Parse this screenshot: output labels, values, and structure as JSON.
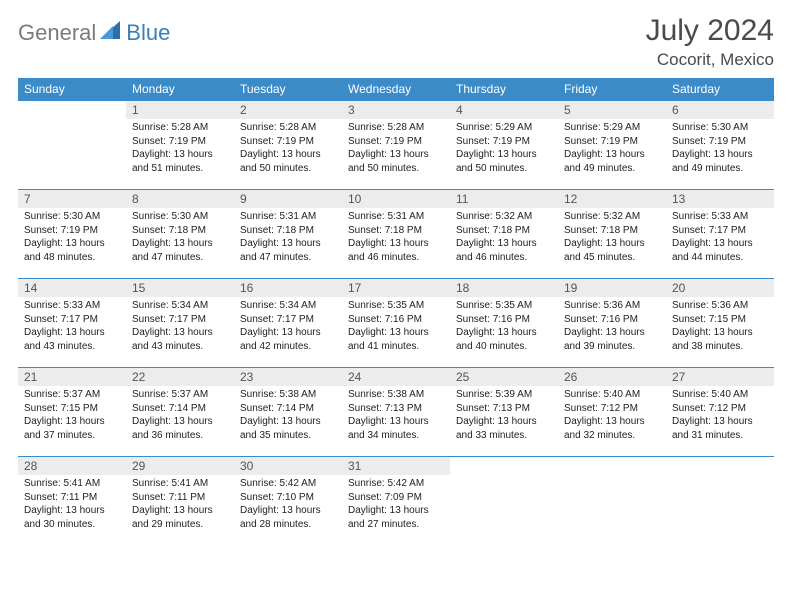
{
  "logo": {
    "general": "General",
    "blue": "Blue"
  },
  "title": "July 2024",
  "location": "Cocorit, Mexico",
  "header_color": "#3b8bc8",
  "daynum_bg": "#ececec",
  "weekdays": [
    "Sunday",
    "Monday",
    "Tuesday",
    "Wednesday",
    "Thursday",
    "Friday",
    "Saturday"
  ],
  "weeks": [
    [
      {
        "n": "",
        "lines": []
      },
      {
        "n": "1",
        "lines": [
          "Sunrise: 5:28 AM",
          "Sunset: 7:19 PM",
          "Daylight: 13 hours",
          "and 51 minutes."
        ]
      },
      {
        "n": "2",
        "lines": [
          "Sunrise: 5:28 AM",
          "Sunset: 7:19 PM",
          "Daylight: 13 hours",
          "and 50 minutes."
        ]
      },
      {
        "n": "3",
        "lines": [
          "Sunrise: 5:28 AM",
          "Sunset: 7:19 PM",
          "Daylight: 13 hours",
          "and 50 minutes."
        ]
      },
      {
        "n": "4",
        "lines": [
          "Sunrise: 5:29 AM",
          "Sunset: 7:19 PM",
          "Daylight: 13 hours",
          "and 50 minutes."
        ]
      },
      {
        "n": "5",
        "lines": [
          "Sunrise: 5:29 AM",
          "Sunset: 7:19 PM",
          "Daylight: 13 hours",
          "and 49 minutes."
        ]
      },
      {
        "n": "6",
        "lines": [
          "Sunrise: 5:30 AM",
          "Sunset: 7:19 PM",
          "Daylight: 13 hours",
          "and 49 minutes."
        ]
      }
    ],
    [
      {
        "n": "7",
        "lines": [
          "Sunrise: 5:30 AM",
          "Sunset: 7:19 PM",
          "Daylight: 13 hours",
          "and 48 minutes."
        ]
      },
      {
        "n": "8",
        "lines": [
          "Sunrise: 5:30 AM",
          "Sunset: 7:18 PM",
          "Daylight: 13 hours",
          "and 47 minutes."
        ]
      },
      {
        "n": "9",
        "lines": [
          "Sunrise: 5:31 AM",
          "Sunset: 7:18 PM",
          "Daylight: 13 hours",
          "and 47 minutes."
        ]
      },
      {
        "n": "10",
        "lines": [
          "Sunrise: 5:31 AM",
          "Sunset: 7:18 PM",
          "Daylight: 13 hours",
          "and 46 minutes."
        ]
      },
      {
        "n": "11",
        "lines": [
          "Sunrise: 5:32 AM",
          "Sunset: 7:18 PM",
          "Daylight: 13 hours",
          "and 46 minutes."
        ]
      },
      {
        "n": "12",
        "lines": [
          "Sunrise: 5:32 AM",
          "Sunset: 7:18 PM",
          "Daylight: 13 hours",
          "and 45 minutes."
        ]
      },
      {
        "n": "13",
        "lines": [
          "Sunrise: 5:33 AM",
          "Sunset: 7:17 PM",
          "Daylight: 13 hours",
          "and 44 minutes."
        ]
      }
    ],
    [
      {
        "n": "14",
        "lines": [
          "Sunrise: 5:33 AM",
          "Sunset: 7:17 PM",
          "Daylight: 13 hours",
          "and 43 minutes."
        ]
      },
      {
        "n": "15",
        "lines": [
          "Sunrise: 5:34 AM",
          "Sunset: 7:17 PM",
          "Daylight: 13 hours",
          "and 43 minutes."
        ]
      },
      {
        "n": "16",
        "lines": [
          "Sunrise: 5:34 AM",
          "Sunset: 7:17 PM",
          "Daylight: 13 hours",
          "and 42 minutes."
        ]
      },
      {
        "n": "17",
        "lines": [
          "Sunrise: 5:35 AM",
          "Sunset: 7:16 PM",
          "Daylight: 13 hours",
          "and 41 minutes."
        ]
      },
      {
        "n": "18",
        "lines": [
          "Sunrise: 5:35 AM",
          "Sunset: 7:16 PM",
          "Daylight: 13 hours",
          "and 40 minutes."
        ]
      },
      {
        "n": "19",
        "lines": [
          "Sunrise: 5:36 AM",
          "Sunset: 7:16 PM",
          "Daylight: 13 hours",
          "and 39 minutes."
        ]
      },
      {
        "n": "20",
        "lines": [
          "Sunrise: 5:36 AM",
          "Sunset: 7:15 PM",
          "Daylight: 13 hours",
          "and 38 minutes."
        ]
      }
    ],
    [
      {
        "n": "21",
        "lines": [
          "Sunrise: 5:37 AM",
          "Sunset: 7:15 PM",
          "Daylight: 13 hours",
          "and 37 minutes."
        ]
      },
      {
        "n": "22",
        "lines": [
          "Sunrise: 5:37 AM",
          "Sunset: 7:14 PM",
          "Daylight: 13 hours",
          "and 36 minutes."
        ]
      },
      {
        "n": "23",
        "lines": [
          "Sunrise: 5:38 AM",
          "Sunset: 7:14 PM",
          "Daylight: 13 hours",
          "and 35 minutes."
        ]
      },
      {
        "n": "24",
        "lines": [
          "Sunrise: 5:38 AM",
          "Sunset: 7:13 PM",
          "Daylight: 13 hours",
          "and 34 minutes."
        ]
      },
      {
        "n": "25",
        "lines": [
          "Sunrise: 5:39 AM",
          "Sunset: 7:13 PM",
          "Daylight: 13 hours",
          "and 33 minutes."
        ]
      },
      {
        "n": "26",
        "lines": [
          "Sunrise: 5:40 AM",
          "Sunset: 7:12 PM",
          "Daylight: 13 hours",
          "and 32 minutes."
        ]
      },
      {
        "n": "27",
        "lines": [
          "Sunrise: 5:40 AM",
          "Sunset: 7:12 PM",
          "Daylight: 13 hours",
          "and 31 minutes."
        ]
      }
    ],
    [
      {
        "n": "28",
        "lines": [
          "Sunrise: 5:41 AM",
          "Sunset: 7:11 PM",
          "Daylight: 13 hours",
          "and 30 minutes."
        ]
      },
      {
        "n": "29",
        "lines": [
          "Sunrise: 5:41 AM",
          "Sunset: 7:11 PM",
          "Daylight: 13 hours",
          "and 29 minutes."
        ]
      },
      {
        "n": "30",
        "lines": [
          "Sunrise: 5:42 AM",
          "Sunset: 7:10 PM",
          "Daylight: 13 hours",
          "and 28 minutes."
        ]
      },
      {
        "n": "31",
        "lines": [
          "Sunrise: 5:42 AM",
          "Sunset: 7:09 PM",
          "Daylight: 13 hours",
          "and 27 minutes."
        ]
      },
      {
        "n": "",
        "lines": []
      },
      {
        "n": "",
        "lines": []
      },
      {
        "n": "",
        "lines": []
      }
    ]
  ]
}
